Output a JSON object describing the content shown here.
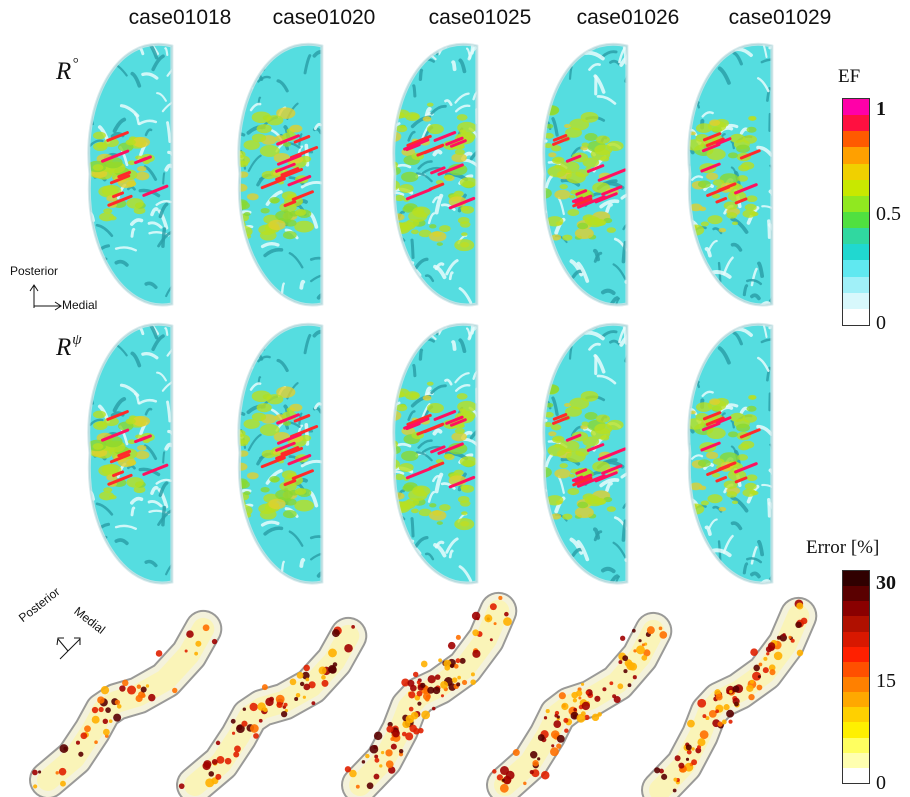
{
  "columns": [
    "case01018",
    "case01020",
    "case01025",
    "case01026",
    "case01029"
  ],
  "rows": {
    "top": {
      "symbol": "R",
      "superscript": "°"
    },
    "middle": {
      "symbol": "R",
      "superscript": "ψ"
    }
  },
  "orientation": {
    "upper": {
      "vertical": "Posterior",
      "horizontal": "Medial"
    },
    "lower": {
      "diagonal_left": "Posterior",
      "diagonal_right": "Medial"
    }
  },
  "ef_colorbar": {
    "title": "EF",
    "ticks": [
      "1",
      "0.5",
      "0"
    ],
    "colors": [
      "#ff00a8",
      "#ff1040",
      "#ff5a00",
      "#ffa000",
      "#f0d000",
      "#c8e800",
      "#90e820",
      "#50e040",
      "#30d8a0",
      "#20d8d0",
      "#60e8f0",
      "#a0f0f8",
      "#d8f8fc",
      "#ffffff"
    ]
  },
  "error_colorbar": {
    "title": "Error [%]",
    "ticks": [
      "30",
      "15",
      "0"
    ],
    "colors": [
      "#300000",
      "#5a0000",
      "#8a0000",
      "#b01000",
      "#d81800",
      "#ff2000",
      "#ff5000",
      "#ff8000",
      "#ffa800",
      "#ffd000",
      "#fff000",
      "#ffff60",
      "#ffffb0",
      "#ffffff"
    ]
  }
}
